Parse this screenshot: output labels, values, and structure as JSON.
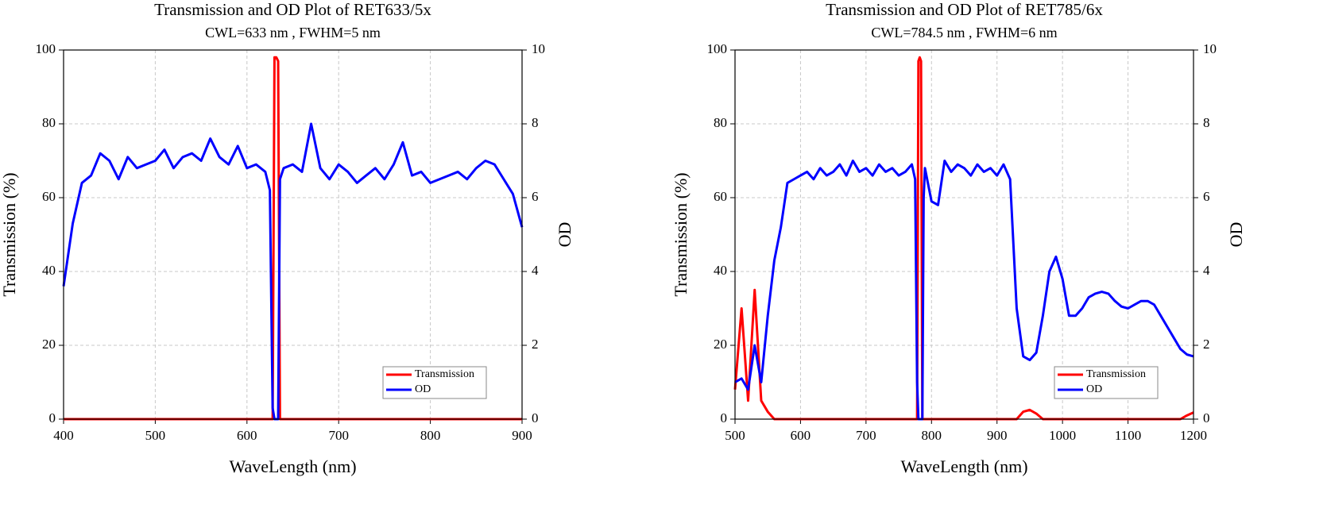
{
  "chart_data": [
    {
      "type": "line",
      "title": "Transmission and OD Plot of RET633/5x",
      "subtitle": "CWL=633 nm , FWHM=5 nm",
      "x_label": "WaveLength (nm)",
      "y_label": "Transmission (%)",
      "y2_label": "OD",
      "x": [
        400,
        410,
        420,
        430,
        440,
        450,
        460,
        470,
        480,
        490,
        500,
        510,
        520,
        530,
        540,
        550,
        560,
        570,
        580,
        590,
        600,
        610,
        620,
        625,
        628,
        630,
        632,
        634,
        636,
        640,
        650,
        660,
        670,
        680,
        690,
        700,
        710,
        720,
        730,
        740,
        750,
        760,
        770,
        780,
        790,
        800,
        810,
        820,
        830,
        840,
        850,
        860,
        870,
        880,
        890,
        900
      ],
      "series": [
        {
          "name": "Transmission",
          "color": "#ff0000",
          "values": [
            0,
            0,
            0,
            0,
            0,
            0,
            0,
            0,
            0,
            0,
            0,
            0,
            0,
            0,
            0,
            0,
            0,
            0,
            0,
            0,
            0,
            0,
            0,
            0,
            0,
            98,
            98,
            97,
            0,
            0,
            0,
            0,
            0,
            0,
            0,
            0,
            0,
            0,
            0,
            0,
            0,
            0,
            0,
            0,
            0,
            0,
            0,
            0,
            0,
            0,
            0,
            0,
            0,
            0,
            0,
            0
          ]
        },
        {
          "name": "OD",
          "color": "#0000ff",
          "axis": "y2",
          "values": [
            3.6,
            5.3,
            6.4,
            6.6,
            7.2,
            7.0,
            6.5,
            7.1,
            6.8,
            6.9,
            7.0,
            7.3,
            6.8,
            7.1,
            7.2,
            7.0,
            7.6,
            7.1,
            6.9,
            7.4,
            6.8,
            6.9,
            6.7,
            6.2,
            0.3,
            0,
            0,
            0,
            6.5,
            6.8,
            6.9,
            6.7,
            8.0,
            6.8,
            6.5,
            6.9,
            6.7,
            6.4,
            6.6,
            6.8,
            6.5,
            6.9,
            7.5,
            6.6,
            6.7,
            6.4,
            6.5,
            6.6,
            6.7,
            6.5,
            6.8,
            7.0,
            6.9,
            6.5,
            6.1,
            5.2
          ]
        }
      ],
      "xlim": [
        400,
        900
      ],
      "xticks": [
        400,
        500,
        600,
        700,
        800,
        900
      ],
      "ylim": [
        0,
        100
      ],
      "yticks": [
        0,
        20,
        40,
        60,
        80,
        100
      ],
      "y2lim": [
        0,
        10
      ],
      "y2ticks": [
        0,
        2,
        4,
        6,
        8,
        10
      ],
      "grid": true,
      "legend": "lower right"
    },
    {
      "type": "line",
      "title": "Transmission and OD Plot of RET785/6x",
      "subtitle": "CWL=784.5 nm , FWHM=6 nm",
      "x_label": "WaveLength (nm)",
      "y_label": "Transmission (%)",
      "y2_label": "OD",
      "x": [
        500,
        510,
        520,
        530,
        540,
        550,
        560,
        570,
        580,
        590,
        600,
        610,
        620,
        630,
        640,
        650,
        660,
        670,
        680,
        690,
        700,
        710,
        720,
        730,
        740,
        750,
        760,
        770,
        775,
        778,
        780,
        782,
        784,
        786,
        788,
        790,
        800,
        810,
        820,
        830,
        840,
        850,
        860,
        870,
        880,
        890,
        900,
        910,
        920,
        930,
        940,
        950,
        960,
        970,
        980,
        990,
        1000,
        1010,
        1020,
        1030,
        1040,
        1050,
        1060,
        1070,
        1080,
        1090,
        1100,
        1110,
        1120,
        1130,
        1140,
        1150,
        1160,
        1170,
        1180,
        1190,
        1200
      ],
      "series": [
        {
          "name": "Transmission",
          "color": "#ff0000",
          "values": [
            8,
            30,
            5,
            35,
            5,
            2,
            0,
            0,
            0,
            0,
            0,
            0,
            0,
            0,
            0,
            0,
            0,
            0,
            0,
            0,
            0,
            0,
            0,
            0,
            0,
            0,
            0,
            0,
            0,
            0,
            97,
            98,
            97,
            0,
            0,
            0,
            0,
            0,
            0,
            0,
            0,
            0,
            0,
            0,
            0,
            0,
            0,
            0,
            0,
            0,
            2,
            2.5,
            1.5,
            0,
            0,
            0,
            0,
            0,
            0,
            0,
            0,
            0,
            0,
            0,
            0,
            0,
            0,
            0,
            0,
            0,
            0,
            0,
            0,
            0,
            0,
            1,
            1.8
          ]
        },
        {
          "name": "OD",
          "color": "#0000ff",
          "axis": "y2",
          "values": [
            1.0,
            1.1,
            0.8,
            2.0,
            1.0,
            2.8,
            4.3,
            5.2,
            6.4,
            6.5,
            6.6,
            6.7,
            6.5,
            6.8,
            6.6,
            6.7,
            6.9,
            6.6,
            7.0,
            6.7,
            6.8,
            6.6,
            6.9,
            6.7,
            6.8,
            6.6,
            6.7,
            6.9,
            6.5,
            1.0,
            0,
            0,
            0,
            0,
            6.0,
            6.8,
            5.9,
            5.8,
            7.0,
            6.7,
            6.9,
            6.8,
            6.6,
            6.9,
            6.7,
            6.8,
            6.6,
            6.9,
            6.5,
            3.0,
            1.7,
            1.6,
            1.8,
            2.8,
            4.0,
            4.4,
            3.8,
            2.8,
            2.8,
            3.0,
            3.3,
            3.4,
            3.45,
            3.4,
            3.2,
            3.05,
            3.0,
            3.1,
            3.2,
            3.2,
            3.1,
            2.8,
            2.5,
            2.2,
            1.9,
            1.75,
            1.7
          ]
        }
      ],
      "xlim": [
        500,
        1200
      ],
      "xticks": [
        500,
        600,
        700,
        800,
        900,
        1000,
        1100,
        1200
      ],
      "ylim": [
        0,
        100
      ],
      "yticks": [
        0,
        20,
        40,
        60,
        80,
        100
      ],
      "y2lim": [
        0,
        10
      ],
      "y2ticks": [
        0,
        2,
        4,
        6,
        8,
        10
      ],
      "grid": true,
      "legend": "lower right"
    }
  ]
}
